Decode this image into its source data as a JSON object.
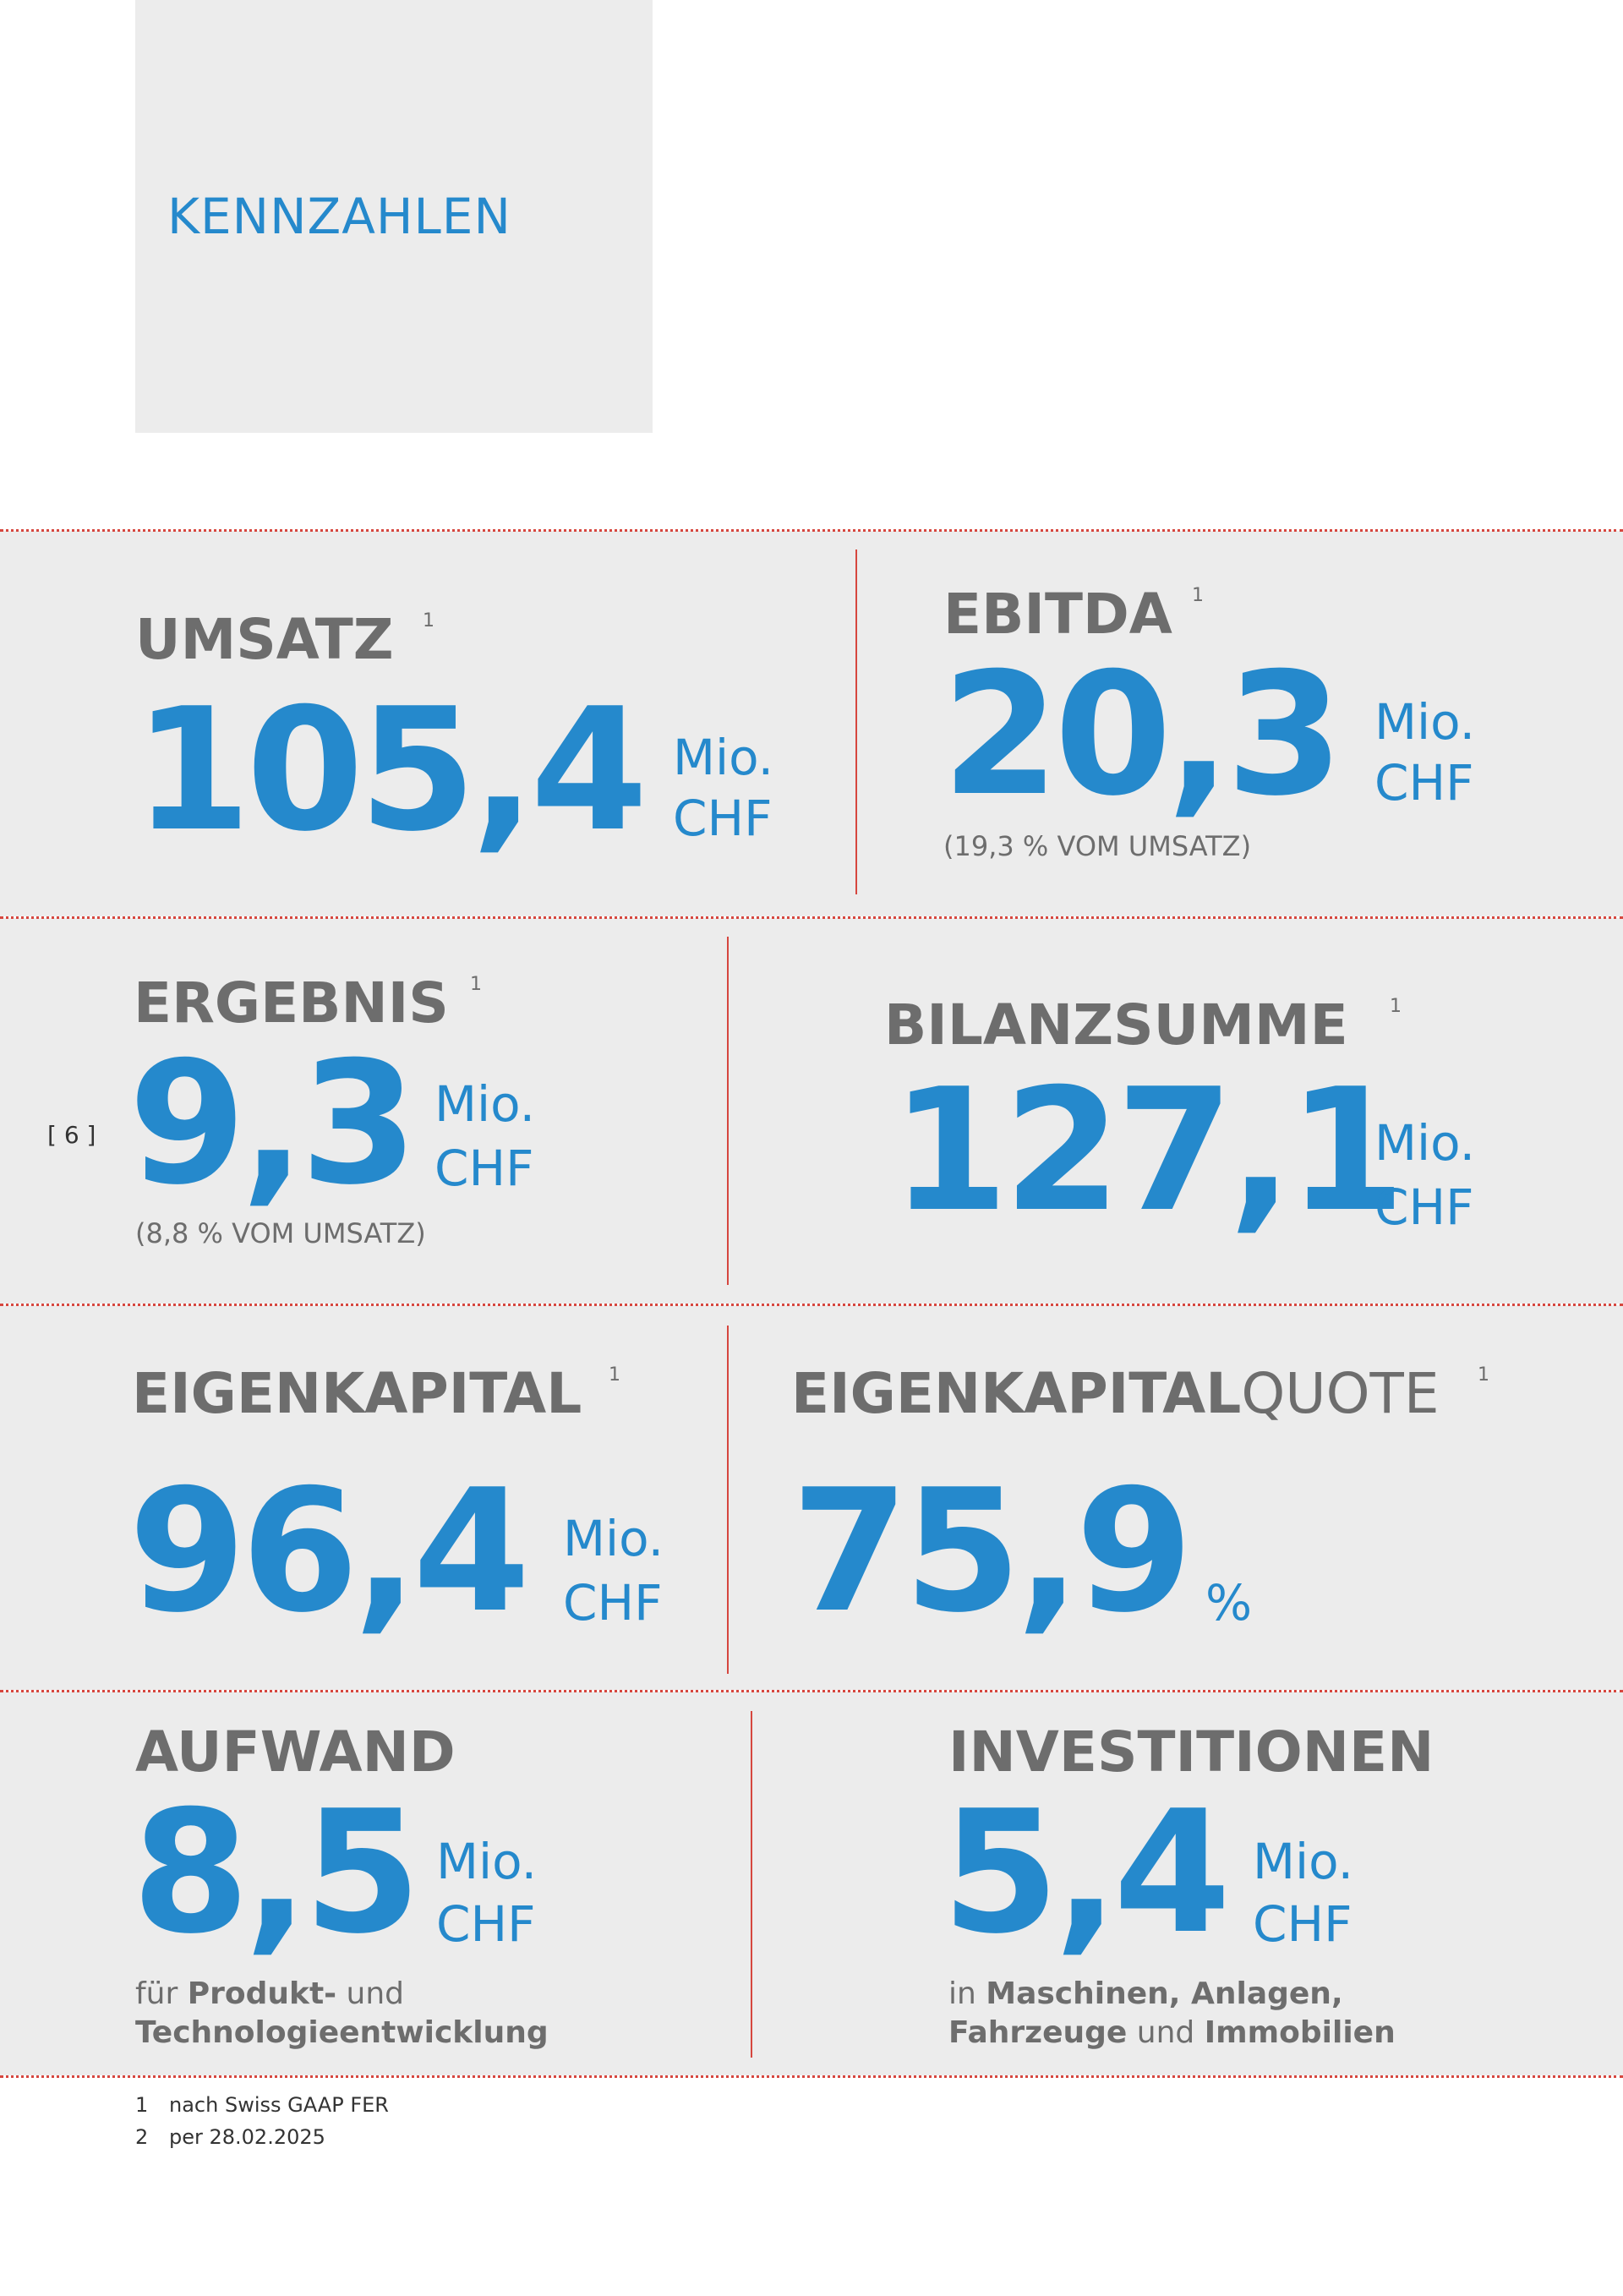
{
  "header": {
    "title": "KENNZAHLEN"
  },
  "page_number": "[ 6 ]",
  "kpis": {
    "umsatz": {
      "label": "UMSATZ",
      "sup": "1",
      "value": "105,4",
      "unit1": "Mio.",
      "unit2": "CHF"
    },
    "ebitda": {
      "label": "EBITDA",
      "sup": "1",
      "value": "20,3",
      "unit1": "Mio.",
      "unit2": "CHF",
      "note": "(19,3 % VOM UMSATZ)"
    },
    "ergebnis": {
      "label": "ERGEBNIS",
      "sup": "1",
      "value": "9,3",
      "unit1": "Mio.",
      "unit2": "CHF",
      "note": "(8,8 % VOM UMSATZ)"
    },
    "bilanzsumme": {
      "label": "BILANZSUMME",
      "sup": "1",
      "value": "127,1",
      "unit1": "Mio.",
      "unit2": "CHF"
    },
    "eigenkapital": {
      "label": "EIGENKAPITAL",
      "sup": "1",
      "value": "96,4",
      "unit1": "Mio.",
      "unit2": "CHF"
    },
    "eigenkapitalquote": {
      "label_bold": "EIGENKAPITAL",
      "label_light": "QUOTE",
      "sup": "1",
      "value": "75,9",
      "unit": "%"
    },
    "aufwand": {
      "label": "AUFWAND",
      "value": "8,5",
      "unit1": "Mio.",
      "unit2": "CHF",
      "desc_l1_a": "für ",
      "desc_l1_b": "Produkt-",
      "desc_l1_c": " und",
      "desc_l2": "Technologieentwicklung"
    },
    "investitionen": {
      "label": "INVESTITIONEN",
      "value": "5,4",
      "unit1": "Mio.",
      "unit2": "CHF",
      "desc_l1_a": "in ",
      "desc_l1_b": "Maschinen, Anlagen,",
      "desc_l2_a": "Fahrzeuge",
      "desc_l2_b": " und ",
      "desc_l2_c": "Immobilien"
    }
  },
  "footnotes": [
    {
      "n": "1",
      "text": "nach Swiss GAAP FER"
    },
    {
      "n": "2",
      "text": "per 28.02.2025"
    }
  ],
  "colors": {
    "accent": "#2589cc",
    "label": "#6d6d6d",
    "divider": "#d6473f",
    "panel": "#ececec"
  }
}
